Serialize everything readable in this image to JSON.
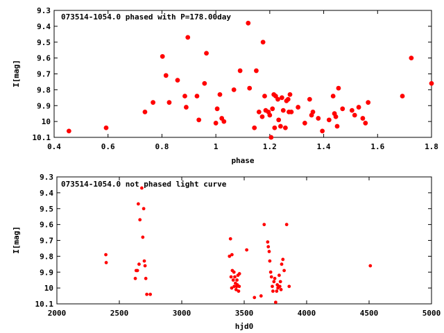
{
  "chart_data": [
    {
      "type": "scatter",
      "title": "073514-1054.0 phased with P=178.00day",
      "xlabel": "phase",
      "ylabel": "I[mag]",
      "xlim": [
        0.4,
        1.8
      ],
      "ylim": [
        10.1,
        9.3
      ],
      "y_inverted": true,
      "grid": false,
      "marker_color": "#ff0000",
      "x_ticks": [
        "0.4",
        "0.6",
        "0.8",
        "1",
        "1.2",
        "1.4",
        "1.6",
        "1.8"
      ],
      "y_ticks": [
        "9.3",
        "9.4",
        "9.5",
        "9.6",
        "9.7",
        "9.8",
        "9.9",
        "10",
        "10.1"
      ],
      "x": [
        0.455,
        0.593,
        0.737,
        0.767,
        0.802,
        0.815,
        0.827,
        0.858,
        0.885,
        0.89,
        0.896,
        0.93,
        0.937,
        0.958,
        0.965,
        1.0,
        1.005,
        1.015,
        1.022,
        1.03,
        1.067,
        1.09,
        1.12,
        1.125,
        1.143,
        1.15,
        1.16,
        1.172,
        1.175,
        1.181,
        1.185,
        1.195,
        1.2,
        1.205,
        1.21,
        1.215,
        1.218,
        1.222,
        1.23,
        1.233,
        1.24,
        1.245,
        1.25,
        1.258,
        1.262,
        1.268,
        1.271,
        1.275,
        1.28,
        1.305,
        1.33,
        1.348,
        1.355,
        1.36,
        1.38,
        1.395,
        1.42,
        1.435,
        1.44,
        1.445,
        1.45,
        1.455,
        1.47,
        1.505,
        1.515,
        1.53,
        1.545,
        1.555,
        1.565,
        1.692,
        1.725,
        1.8
      ],
      "y": [
        10.06,
        10.04,
        9.94,
        9.88,
        9.59,
        9.71,
        9.88,
        9.74,
        9.84,
        9.91,
        9.47,
        9.84,
        9.99,
        9.76,
        9.57,
        10.01,
        9.92,
        9.83,
        9.98,
        10.0,
        9.8,
        9.68,
        9.38,
        9.79,
        10.04,
        9.68,
        9.94,
        9.97,
        9.5,
        9.84,
        9.93,
        9.94,
        9.96,
        10.1,
        9.92,
        9.83,
        10.04,
        9.84,
        9.86,
        9.99,
        10.03,
        9.85,
        9.93,
        10.04,
        9.87,
        9.86,
        9.94,
        9.83,
        9.94,
        9.91,
        10.01,
        9.86,
        9.96,
        9.94,
        9.98,
        10.06,
        9.99,
        9.84,
        9.95,
        9.97,
        10.03,
        9.79,
        9.92,
        9.93,
        9.96,
        9.91,
        9.98,
        10.01,
        9.88,
        9.84,
        9.6,
        9.76
      ]
    },
    {
      "type": "scatter",
      "title": "073514-1054.0 not phased light curve",
      "xlabel": "hjd0",
      "ylabel": "I[mag]",
      "xlim": [
        2000,
        5000
      ],
      "ylim": [
        10.1,
        9.3
      ],
      "y_inverted": true,
      "grid": false,
      "marker_color": "#ff0000",
      "x_ticks": [
        "2000",
        "2500",
        "3000",
        "3500",
        "4000",
        "4500",
        "5000"
      ],
      "y_ticks": [
        "9.3",
        "9.4",
        "9.5",
        "9.6",
        "9.7",
        "9.8",
        "9.9",
        "10",
        "10.1"
      ],
      "x": [
        2392,
        2395,
        2628,
        2635,
        2645,
        2652,
        2658,
        2665,
        2680,
        2688,
        2695,
        2700,
        2706,
        2712,
        2720,
        2748,
        3382,
        3390,
        3395,
        3400,
        3402,
        3405,
        3412,
        3418,
        3420,
        3425,
        3430,
        3435,
        3440,
        3442,
        3445,
        3450,
        3455,
        3460,
        3462,
        3520,
        3582,
        3635,
        3660,
        3688,
        3693,
        3700,
        3705,
        3712,
        3718,
        3725,
        3730,
        3738,
        3745,
        3752,
        3760,
        3765,
        3770,
        3780,
        3785,
        3790,
        3795,
        3800,
        3810,
        3820,
        3840,
        3860,
        4510
      ],
      "y": [
        9.79,
        9.84,
        9.94,
        9.89,
        9.89,
        9.47,
        9.85,
        9.57,
        9.37,
        9.68,
        9.5,
        9.83,
        9.86,
        9.94,
        10.04,
        10.04,
        9.8,
        9.69,
        9.93,
        10.0,
        9.79,
        9.89,
        9.95,
        9.9,
        9.99,
        9.93,
        9.97,
        10.01,
        9.99,
        9.95,
        9.98,
        9.92,
        10.02,
        9.99,
        9.91,
        9.76,
        10.06,
        10.05,
        9.6,
        9.71,
        9.74,
        9.77,
        9.83,
        9.9,
        9.93,
        9.99,
        10.02,
        9.96,
        9.94,
        10.09,
        10.02,
        9.98,
        10.0,
        9.92,
        9.99,
        9.96,
        10.01,
        9.85,
        9.82,
        9.89,
        9.6,
        9.99,
        9.86
      ]
    }
  ]
}
